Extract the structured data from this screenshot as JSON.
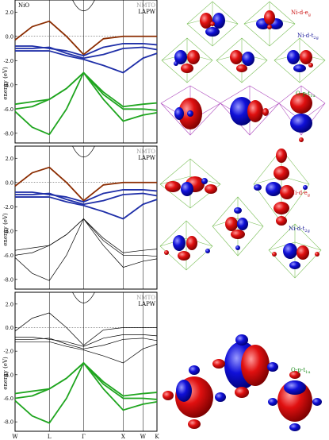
{
  "figure": {
    "material_label": "NiO",
    "legend_nmto": "NMTO",
    "legend_lapw": "LAPW",
    "y_axis_label": "energy (eV)",
    "y_tick_labels": [
      "2.0",
      "0.0",
      "-2.0",
      "-4.0",
      "-6.0",
      "-8.0"
    ],
    "k_point_labels": [
      "W",
      "L",
      "Γ",
      "X",
      "W",
      "K"
    ],
    "orbital_labels": {
      "ni_eg": "Ni-d-e",
      "ni_eg_sub": "g",
      "ni_t2g": "Ni-d-t",
      "ni_t2g_sub": "2g",
      "o_p": "O-p-t",
      "o_p_sub": "1u"
    },
    "colors": {
      "eg_band": "#8b2c00",
      "t2g_band": "#1f2fa8",
      "o_p_band": "#1fa51f",
      "lapw_band": "#000000",
      "lobe_red": "#e01010",
      "lobe_blue": "#1010d8",
      "eg_label": "#cc1111",
      "t2g_label": "#1a1a99",
      "o_p_label": "#1a8a1a",
      "octahedron": "#7cc05a",
      "cube_frame": "#b050c0"
    }
  },
  "chart_data": [
    {
      "type": "line",
      "panel": "top",
      "title": "",
      "xlabel": "",
      "ylabel": "energy (eV)",
      "ylim": [
        -8.8,
        3.0
      ],
      "x_ticks": [
        "W",
        "L",
        "Γ",
        "X",
        "W",
        "K"
      ],
      "x_tick_positions": [
        0,
        0.866,
        1.732,
        2.732,
        3.232,
        3.586
      ],
      "legend": [
        "NMTO",
        "LAPW"
      ],
      "series": [
        {
          "name": "",
          "x": [
            0,
            0.433,
            0.866,
            1.3,
            1.732,
            2.232,
            2.732,
            3.232,
            3.586
          ],
          "y": [
            -0.3,
            0.8,
            1.25,
            0.0,
            -1.5,
            -0.2,
            0.0,
            0.0,
            0.0
          ]
        },
        {
          "name": "",
          "x": [
            0,
            0.433,
            0.866,
            1.3,
            1.732,
            2.232,
            2.732,
            3.232,
            3.586
          ],
          "y": [
            -0.8,
            -0.8,
            -1.0,
            -1.2,
            -1.6,
            -0.9,
            -0.6,
            -0.6,
            -0.7
          ]
        },
        {
          "name": "",
          "x": [
            0,
            0.433,
            0.866,
            1.3,
            1.732,
            2.232,
            2.732,
            3.232,
            3.586
          ],
          "y": [
            -1.0,
            -1.0,
            -0.9,
            -1.4,
            -1.8,
            -1.5,
            -1.0,
            -0.9,
            -1.1
          ]
        },
        {
          "name": "",
          "x": [
            0,
            0.433,
            0.866,
            1.3,
            1.732,
            2.232,
            2.732,
            3.232,
            3.586
          ],
          "y": [
            -1.2,
            -1.2,
            -1.2,
            -1.6,
            -1.9,
            -2.4,
            -3.0,
            -1.8,
            -1.4
          ]
        },
        {
          "name": "",
          "x": [
            0,
            0.433,
            0.866,
            1.3,
            1.732,
            2.232,
            2.732,
            3.232,
            3.586
          ],
          "y": [
            -5.6,
            -5.4,
            -5.2,
            -4.3,
            -3.0,
            -4.6,
            -5.8,
            -5.6,
            -5.5
          ]
        },
        {
          "name": "",
          "x": [
            0,
            0.433,
            0.866,
            1.3,
            1.732,
            2.232,
            2.732,
            3.232,
            3.586
          ],
          "y": [
            -6.0,
            -5.8,
            -5.2,
            -4.3,
            -3.0,
            -4.8,
            -6.0,
            -6.0,
            -6.1
          ]
        },
        {
          "name": "",
          "x": [
            0,
            0.433,
            0.866,
            1.3,
            1.732,
            2.232,
            2.732,
            3.232,
            3.586
          ],
          "y": [
            -6.2,
            -7.5,
            -8.1,
            -6.0,
            -3.0,
            -5.2,
            -7.0,
            -6.5,
            -6.3
          ]
        }
      ]
    },
    {
      "type": "line",
      "panel": "middle",
      "title": "",
      "xlabel": "",
      "ylabel": "energy (eV)",
      "ylim": [
        -8.8,
        3.0
      ],
      "x_ticks": [
        "W",
        "L",
        "Γ",
        "X",
        "W",
        "K"
      ],
      "x_tick_positions": [
        0,
        0.866,
        1.732,
        2.732,
        3.232,
        3.586
      ],
      "legend": [
        "NMTO",
        "LAPW"
      ],
      "series": [
        {
          "name": "",
          "x": [
            0,
            0.433,
            0.866,
            1.3,
            1.732,
            2.232,
            2.732,
            3.232,
            3.586
          ],
          "y": [
            -0.3,
            0.8,
            1.25,
            0.0,
            -1.5,
            -0.2,
            0.0,
            0.0,
            0.0
          ]
        },
        {
          "name": "",
          "x": [
            0,
            0.433,
            0.866,
            1.3,
            1.732,
            2.232,
            2.732,
            3.232,
            3.586
          ],
          "y": [
            -0.8,
            -0.8,
            -1.0,
            -1.2,
            -1.6,
            -0.9,
            -0.6,
            -0.6,
            -0.7
          ]
        },
        {
          "name": "",
          "x": [
            0,
            0.433,
            0.866,
            1.3,
            1.732,
            2.232,
            2.732,
            3.232,
            3.586
          ],
          "y": [
            -1.0,
            -1.0,
            -0.9,
            -1.4,
            -1.8,
            -1.5,
            -1.0,
            -0.9,
            -1.1
          ]
        },
        {
          "name": "",
          "x": [
            0,
            0.433,
            0.866,
            1.3,
            1.732,
            2.232,
            2.732,
            3.232,
            3.586
          ],
          "y": [
            -1.2,
            -1.2,
            -1.2,
            -1.6,
            -1.9,
            -2.4,
            -3.0,
            -1.8,
            -1.4
          ]
        }
      ]
    },
    {
      "type": "line",
      "panel": "bottom",
      "title": "",
      "xlabel": "",
      "ylabel": "energy (eV)",
      "ylim": [
        -8.8,
        3.0
      ],
      "x_ticks": [
        "W",
        "L",
        "Γ",
        "X",
        "W",
        "K"
      ],
      "x_tick_positions": [
        0,
        0.866,
        1.732,
        2.732,
        3.232,
        3.586
      ],
      "legend": [
        "NMTO",
        "LAPW"
      ],
      "series": [
        {
          "name": "",
          "x": [
            0,
            0.433,
            0.866,
            1.3,
            1.732,
            2.232,
            2.732,
            3.232,
            3.586
          ],
          "y": [
            -5.6,
            -5.4,
            -5.2,
            -4.3,
            -3.0,
            -4.6,
            -5.8,
            -5.6,
            -5.5
          ]
        },
        {
          "name": "",
          "x": [
            0,
            0.433,
            0.866,
            1.3,
            1.732,
            2.232,
            2.732,
            3.232,
            3.586
          ],
          "y": [
            -6.0,
            -5.8,
            -5.2,
            -4.3,
            -3.0,
            -4.8,
            -6.0,
            -6.0,
            -6.1
          ]
        },
        {
          "name": "",
          "x": [
            0,
            0.433,
            0.866,
            1.3,
            1.732,
            2.232,
            2.732,
            3.232,
            3.586
          ],
          "y": [
            -6.2,
            -7.5,
            -8.1,
            -6.0,
            -3.0,
            -5.2,
            -7.0,
            -6.5,
            -6.3
          ]
        }
      ]
    }
  ]
}
